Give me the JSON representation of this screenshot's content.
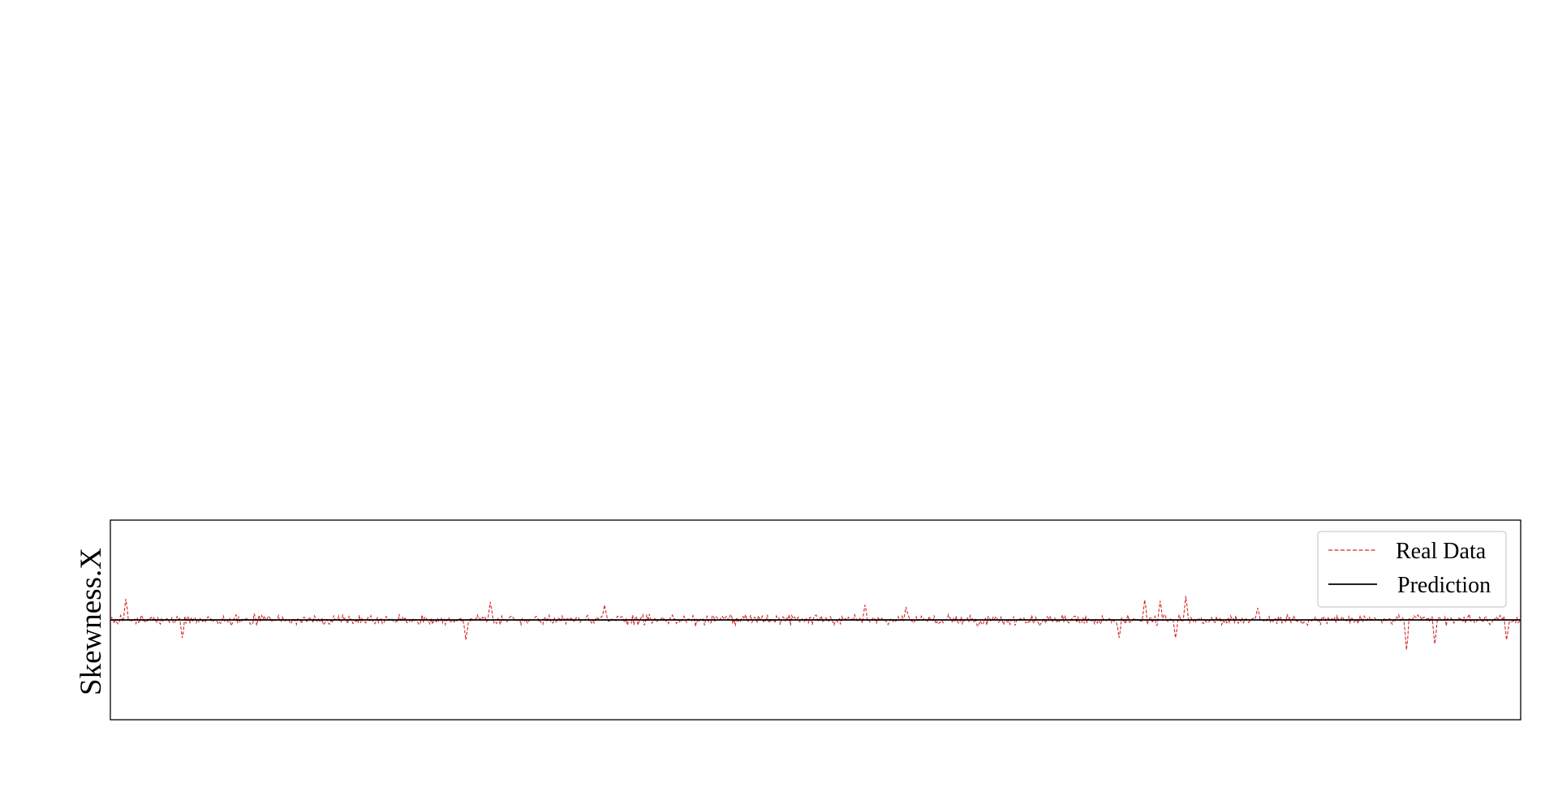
{
  "chart_data": {
    "type": "line",
    "title": "",
    "xlabel": "",
    "ylabel": "Skewness.X",
    "x_ticks_visible": false,
    "y_ticks_visible": false,
    "grid": false,
    "legend_placement": "top-right",
    "n_points": 1100,
    "ylim": [
      -1,
      1
    ],
    "series": [
      {
        "name": "Real Data",
        "style": "dashed",
        "color": "#d62728",
        "description_values": {
          "baseline": 0.0,
          "typical_amplitude": 0.06,
          "spikes": [
            {
              "index": 12,
              "value": 0.21
            },
            {
              "index": 56,
              "value": -0.18
            },
            {
              "index": 277,
              "value": -0.2
            },
            {
              "index": 296,
              "value": 0.18
            },
            {
              "index": 385,
              "value": 0.15
            },
            {
              "index": 588,
              "value": 0.15
            },
            {
              "index": 620,
              "value": 0.13
            },
            {
              "index": 786,
              "value": -0.18
            },
            {
              "index": 806,
              "value": 0.2
            },
            {
              "index": 818,
              "value": 0.19
            },
            {
              "index": 830,
              "value": -0.18
            },
            {
              "index": 838,
              "value": 0.24
            },
            {
              "index": 894,
              "value": 0.12
            },
            {
              "index": 1010,
              "value": -0.3
            },
            {
              "index": 1032,
              "value": -0.24
            },
            {
              "index": 1088,
              "value": -0.2
            }
          ]
        }
      },
      {
        "name": "Prediction",
        "style": "solid",
        "color": "#000000",
        "description_values": {
          "baseline": 0.0
        }
      }
    ]
  }
}
